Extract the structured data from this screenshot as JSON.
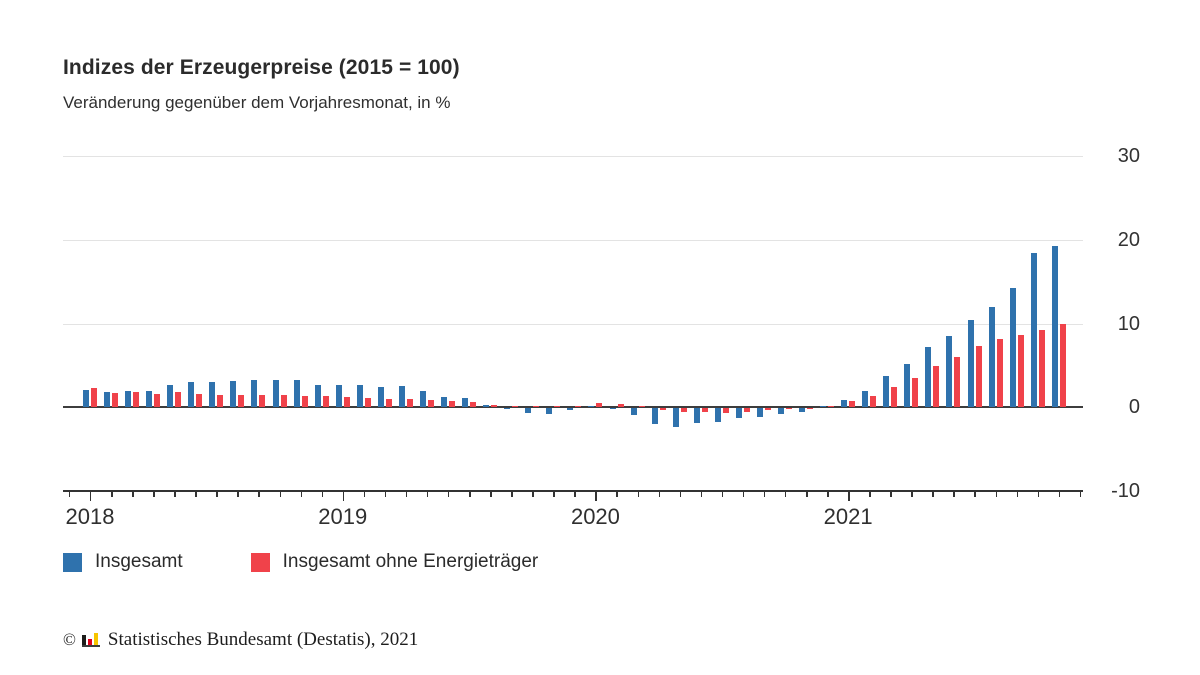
{
  "header": {
    "title": "Indizes der Erzeugerpreise (2015 = 100)",
    "subtitle": "Veränderung gegenüber dem Vorjahresmonat, in %"
  },
  "legend": {
    "items": [
      {
        "label": "Insgesamt",
        "color": "#2f72ad"
      },
      {
        "label": "Insgesamt ohne Energieträger",
        "color": "#f0424a"
      }
    ]
  },
  "footer": {
    "copyright": "©",
    "text": "Statistisches Bundesamt (Destatis), 2021",
    "logo_bar_colors": [
      "#1d1d1b",
      "#e2001a",
      "#f6c500"
    ]
  },
  "chart_data": {
    "type": "bar",
    "title": "Indizes der Erzeugerpreise (2015 = 100)",
    "subtitle": "Veränderung gegenüber dem Vorjahresmonat, in %",
    "unit": "%",
    "grid": "horizontal",
    "legend_position": "bottom-left",
    "y_ticks": [
      30,
      20,
      10,
      0,
      -10
    ],
    "ylim": [
      -10,
      30
    ],
    "x_year_labels": [
      "2018",
      "2019",
      "2020",
      "2021"
    ],
    "months": [
      "2018-01",
      "2018-02",
      "2018-03",
      "2018-04",
      "2018-05",
      "2018-06",
      "2018-07",
      "2018-08",
      "2018-09",
      "2018-10",
      "2018-11",
      "2018-12",
      "2019-01",
      "2019-02",
      "2019-03",
      "2019-04",
      "2019-05",
      "2019-06",
      "2019-07",
      "2019-08",
      "2019-09",
      "2019-10",
      "2019-11",
      "2019-12",
      "2020-01",
      "2020-02",
      "2020-03",
      "2020-04",
      "2020-05",
      "2020-06",
      "2020-07",
      "2020-08",
      "2020-09",
      "2020-10",
      "2020-11",
      "2020-12",
      "2021-01",
      "2021-02",
      "2021-03",
      "2021-04",
      "2021-05",
      "2021-06",
      "2021-07",
      "2021-08",
      "2021-09",
      "2021-10",
      "2021-11"
    ],
    "series": [
      {
        "name": "Insgesamt",
        "color": "#2f72ad",
        "values": [
          2.1,
          1.8,
          1.9,
          2.0,
          2.7,
          3.0,
          3.0,
          3.1,
          3.2,
          3.3,
          3.3,
          2.7,
          2.6,
          2.6,
          2.4,
          2.5,
          1.9,
          1.2,
          1.1,
          0.3,
          -0.1,
          -0.6,
          -0.7,
          -0.2,
          0.2,
          -0.1,
          -0.8,
          -1.9,
          -2.2,
          -1.8,
          -1.7,
          -1.2,
          -1.0,
          -0.7,
          -0.5,
          0.2,
          0.9,
          1.9,
          3.7,
          5.2,
          7.2,
          8.5,
          10.4,
          12.0,
          14.2,
          18.4,
          19.2
        ]
      },
      {
        "name": "Insgesamt ohne Energieträger",
        "color": "#f0424a",
        "values": [
          2.3,
          1.7,
          1.8,
          1.6,
          1.8,
          1.6,
          1.5,
          1.5,
          1.5,
          1.5,
          1.4,
          1.3,
          1.2,
          1.1,
          1.0,
          1.0,
          0.9,
          0.8,
          0.6,
          0.3,
          0.2,
          0.1,
          0.1,
          0.2,
          0.5,
          0.4,
          0.2,
          -0.2,
          -0.4,
          -0.5,
          -0.6,
          -0.4,
          -0.2,
          -0.1,
          -0.1,
          0.1,
          0.8,
          1.3,
          2.4,
          3.5,
          4.9,
          6.0,
          7.3,
          8.1,
          8.6,
          9.2,
          9.9
        ]
      }
    ]
  }
}
